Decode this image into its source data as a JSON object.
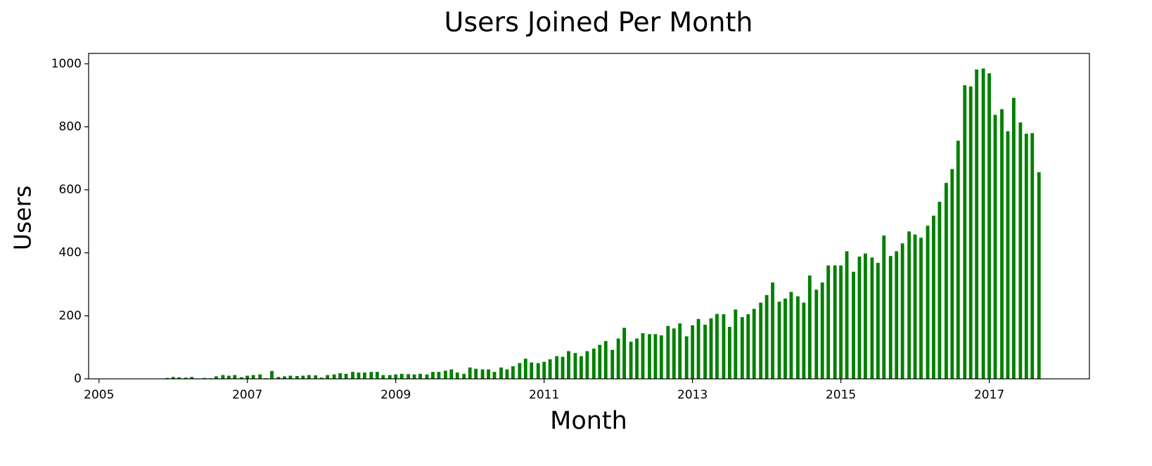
{
  "chart_data": {
    "type": "bar",
    "title": "Users Joined Per Month",
    "x_label": "Month",
    "y_label": "Users",
    "color": "#008000",
    "xlim": [
      2004.86,
      2018.35
    ],
    "xticks": [
      2005,
      2007,
      2009,
      2011,
      2013,
      2015,
      2017
    ],
    "ylim": [
      0,
      1033
    ],
    "yticks": [
      0,
      200,
      400,
      600,
      800,
      1000
    ],
    "grid": false,
    "x": [
      2005.92,
      2006.0,
      2006.08,
      2006.17,
      2006.25,
      2006.33,
      2006.42,
      2006.5,
      2006.58,
      2006.67,
      2006.75,
      2006.83,
      2006.92,
      2007.0,
      2007.08,
      2007.17,
      2007.25,
      2007.33,
      2007.42,
      2007.5,
      2007.58,
      2007.67,
      2007.75,
      2007.83,
      2007.92,
      2008.0,
      2008.08,
      2008.17,
      2008.25,
      2008.33,
      2008.42,
      2008.5,
      2008.58,
      2008.67,
      2008.75,
      2008.83,
      2008.92,
      2009.0,
      2009.08,
      2009.17,
      2009.25,
      2009.33,
      2009.42,
      2009.5,
      2009.58,
      2009.67,
      2009.75,
      2009.83,
      2009.92,
      2010.0,
      2010.08,
      2010.17,
      2010.25,
      2010.33,
      2010.42,
      2010.5,
      2010.58,
      2010.67,
      2010.75,
      2010.83,
      2010.92,
      2011.0,
      2011.08,
      2011.17,
      2011.25,
      2011.33,
      2011.42,
      2011.5,
      2011.58,
      2011.67,
      2011.75,
      2011.83,
      2011.92,
      2012.0,
      2012.08,
      2012.17,
      2012.25,
      2012.33,
      2012.42,
      2012.5,
      2012.58,
      2012.67,
      2012.75,
      2012.83,
      2012.92,
      2013.0,
      2013.08,
      2013.17,
      2013.25,
      2013.33,
      2013.42,
      2013.5,
      2013.58,
      2013.67,
      2013.75,
      2013.83,
      2013.92,
      2014.0,
      2014.08,
      2014.17,
      2014.25,
      2014.33,
      2014.42,
      2014.5,
      2014.58,
      2014.67,
      2014.75,
      2014.83,
      2014.92,
      2015.0,
      2015.08,
      2015.17,
      2015.25,
      2015.33,
      2015.42,
      2015.5,
      2015.58,
      2015.67,
      2015.75,
      2015.83,
      2015.92,
      2016.0,
      2016.08,
      2016.17,
      2016.25,
      2016.33,
      2016.42,
      2016.5,
      2016.58,
      2016.67,
      2016.75,
      2016.83,
      2016.92,
      2017.0,
      2017.08,
      2017.17,
      2017.25,
      2017.33,
      2017.42,
      2017.5,
      2017.58,
      2017.67
    ],
    "values": [
      3,
      6,
      5,
      4,
      6,
      0,
      3,
      2,
      8,
      12,
      10,
      12,
      5,
      10,
      12,
      14,
      2,
      25,
      6,
      8,
      10,
      9,
      10,
      12,
      11,
      4,
      12,
      14,
      18,
      16,
      22,
      20,
      20,
      22,
      22,
      12,
      12,
      14,
      16,
      15,
      14,
      16,
      14,
      22,
      22,
      26,
      30,
      20,
      16,
      36,
      32,
      30,
      30,
      22,
      36,
      30,
      40,
      50,
      64,
      52,
      50,
      54,
      62,
      72,
      70,
      88,
      82,
      72,
      88,
      96,
      108,
      120,
      92,
      128,
      162,
      118,
      128,
      145,
      142,
      142,
      138,
      168,
      160,
      176,
      135,
      170,
      190,
      172,
      192,
      206,
      205,
      165,
      220,
      196,
      205,
      222,
      242,
      266,
      306,
      245,
      255,
      276,
      262,
      242,
      328,
      283,
      306,
      360,
      360,
      360,
      405,
      340,
      388,
      398,
      385,
      368,
      455,
      390,
      405,
      430,
      468,
      458,
      448,
      486,
      518,
      562,
      622,
      666,
      756,
      932,
      928,
      982,
      985,
      970,
      838,
      856,
      786,
      892,
      814,
      778,
      780,
      656
    ]
  }
}
